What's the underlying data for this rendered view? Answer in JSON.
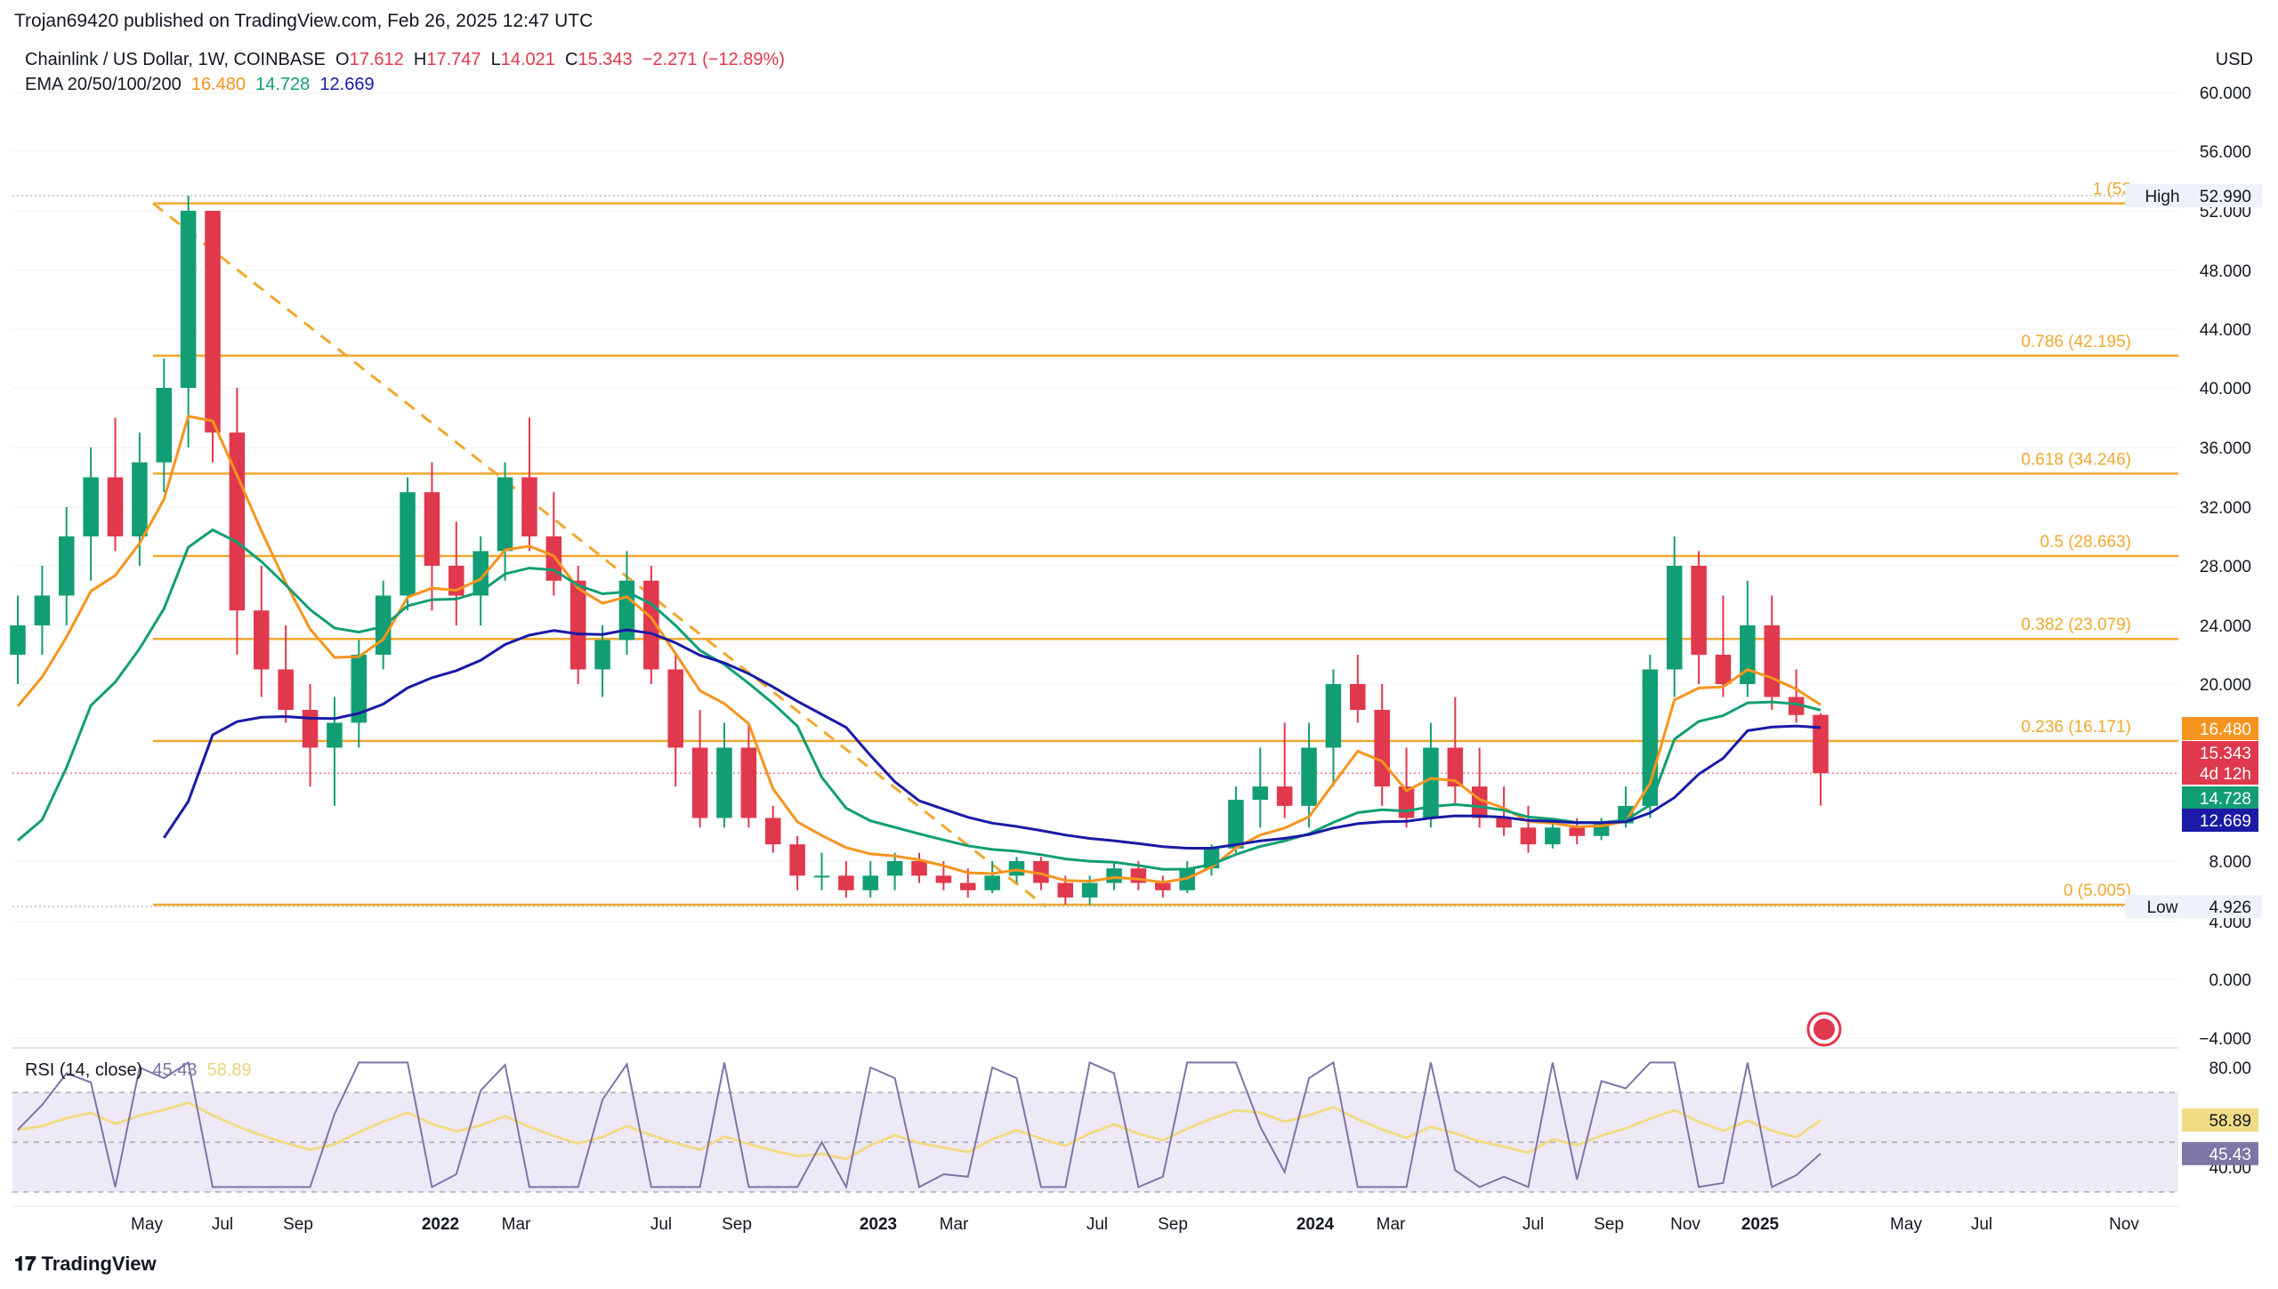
{
  "header": {
    "published": "Trojan69420 published on TradingView.com, Feb 26, 2025 12:47 UTC",
    "symbol": "Chainlink / US Dollar, 1W, COINBASE",
    "o_label": "O",
    "o_value": "17.612",
    "h_label": "H",
    "h_value": "17.747",
    "l_label": "L",
    "l_value": "14.021",
    "c_label": "C",
    "c_value": "15.343",
    "change": "−2.271 (−12.89%)",
    "ema_label": "EMA 20/50/100/200",
    "ema20": "16.480",
    "ema50": "14.728",
    "ema100": "12.669",
    "currency": "USD"
  },
  "rsi_header": {
    "label": "RSI (14, close)",
    "rsi": "45.43",
    "ma": "58.89"
  },
  "footer": {
    "logo_text": "TradingView"
  },
  "colors": {
    "up": "#129e74",
    "down": "#e0384d",
    "fib": "#f0a830",
    "ema20": "#f7941d",
    "ema50": "#129e74",
    "ema100": "#1a1aa6",
    "rsi": "#7e74a6",
    "rsi_ma": "#f1dc86",
    "rsi_band": "#ede9f7"
  },
  "chart_data": {
    "type": "candlestick",
    "price_axis": {
      "ticks": [
        "60.000",
        "56.000",
        "52.000",
        "48.000",
        "44.000",
        "40.000",
        "36.000",
        "32.000",
        "28.000",
        "24.000",
        "20.000",
        "8.000",
        "4.000",
        "0.000",
        "−4.000"
      ],
      "ylim": [
        -4,
        62
      ],
      "scale": "non-linear"
    },
    "time_axis": {
      "ticks": [
        "May",
        "Jul",
        "Sep",
        "2022",
        "Mar",
        "Jul",
        "Sep",
        "2023",
        "Mar",
        "Jul",
        "Sep",
        "2024",
        "Mar",
        "Jul",
        "Sep",
        "Nov",
        "2025",
        "May",
        "Jul",
        "Nov"
      ],
      "bold": [
        "2022",
        "2023",
        "2024",
        "2025"
      ]
    },
    "fib_levels": [
      {
        "label": "1 (52",
        "value": 52.49
      },
      {
        "label": "0.786 (42.195)",
        "value": 42.195
      },
      {
        "label": "0.618 (34.246)",
        "value": 34.246
      },
      {
        "label": "0.5 (28.663)",
        "value": 28.663
      },
      {
        "label": "0.382 (23.079)",
        "value": 23.079
      },
      {
        "label": "0.236 (16.171)",
        "value": 16.171
      },
      {
        "label": "0 (5.005)",
        "value": 5.005
      }
    ],
    "high": {
      "label": "High",
      "value": "52.990"
    },
    "low": {
      "label": "Low",
      "value": "4.926"
    },
    "price_tags": [
      {
        "value": "16.480",
        "color": "#f7941d"
      },
      {
        "value": "15.343",
        "color": "#e0384d"
      },
      {
        "value": "4d 12h",
        "color": "#e0384d"
      },
      {
        "value": "14.728",
        "color": "#129e74"
      },
      {
        "value": "12.669",
        "color": "#1a1aa6"
      }
    ],
    "ohlc_weekly_sample": [
      [
        22,
        26,
        20,
        24
      ],
      [
        24,
        28,
        22,
        26
      ],
      [
        26,
        32,
        24,
        30
      ],
      [
        30,
        36,
        27,
        34
      ],
      [
        34,
        38,
        29,
        30
      ],
      [
        30,
        37,
        28,
        35
      ],
      [
        35,
        42,
        33,
        40
      ],
      [
        40,
        52.99,
        36,
        52
      ],
      [
        52,
        52,
        35,
        37
      ],
      [
        37,
        40,
        22,
        25
      ],
      [
        25,
        28,
        19,
        21
      ],
      [
        21,
        24,
        17,
        18
      ],
      [
        18,
        20,
        15,
        16
      ],
      [
        16,
        19,
        14,
        17
      ],
      [
        17,
        23,
        16,
        22
      ],
      [
        22,
        27,
        21,
        26
      ],
      [
        26,
        34,
        25,
        33
      ],
      [
        33,
        35,
        25,
        28
      ],
      [
        28,
        31,
        24,
        26
      ],
      [
        26,
        30,
        24,
        29
      ],
      [
        29,
        35,
        27,
        34
      ],
      [
        34,
        38,
        29,
        30
      ],
      [
        30,
        33,
        26,
        27
      ],
      [
        27,
        28,
        20,
        21
      ],
      [
        21,
        24,
        19,
        23
      ],
      [
        23,
        29,
        22,
        27
      ],
      [
        27,
        28,
        20,
        21
      ],
      [
        21,
        22,
        15,
        16
      ],
      [
        16,
        18,
        12,
        13
      ],
      [
        13,
        17,
        12,
        16
      ],
      [
        16,
        17,
        12,
        13
      ],
      [
        13,
        14,
        9,
        10
      ],
      [
        10,
        11,
        6,
        7
      ],
      [
        7,
        9,
        6,
        7
      ],
      [
        7,
        8,
        5.5,
        6
      ],
      [
        6,
        8,
        5.5,
        7
      ],
      [
        7,
        9,
        6,
        8
      ],
      [
        8,
        9,
        6.5,
        7
      ],
      [
        7,
        8,
        6,
        6.5
      ],
      [
        6.5,
        7.5,
        5.5,
        6
      ],
      [
        6,
        8,
        5.8,
        7
      ],
      [
        7,
        8.5,
        6.5,
        8
      ],
      [
        8,
        8.5,
        6,
        6.5
      ],
      [
        6.5,
        7,
        5,
        5.5
      ],
      [
        5.5,
        7,
        5,
        6.5
      ],
      [
        6.5,
        8,
        6,
        7.5
      ],
      [
        7.5,
        8,
        6,
        6.5
      ],
      [
        6.5,
        7,
        5.5,
        6
      ],
      [
        6,
        8,
        5.8,
        7.5
      ],
      [
        7.5,
        10,
        7,
        9.5
      ],
      [
        9.5,
        15,
        9,
        14.5
      ],
      [
        14.5,
        16,
        12,
        15
      ],
      [
        15,
        17,
        13,
        14
      ],
      [
        14,
        17,
        12,
        16
      ],
      [
        16,
        21,
        15,
        20
      ],
      [
        20,
        22,
        17,
        18
      ],
      [
        18,
        20,
        14,
        15
      ],
      [
        15,
        16,
        12,
        13
      ],
      [
        13,
        17,
        12,
        16
      ],
      [
        16,
        19,
        14,
        15
      ],
      [
        15,
        16,
        12,
        13
      ],
      [
        13,
        15,
        11,
        12
      ],
      [
        12,
        14,
        9,
        10
      ],
      [
        10,
        13,
        9.5,
        12
      ],
      [
        12,
        13,
        10,
        11
      ],
      [
        11,
        13,
        10.5,
        12.5
      ],
      [
        12.5,
        15,
        12,
        14
      ],
      [
        14,
        22,
        13,
        21
      ],
      [
        21,
        30,
        19,
        28
      ],
      [
        28,
        29,
        20,
        22
      ],
      [
        22,
        26,
        19,
        20
      ],
      [
        20,
        27,
        19,
        24
      ],
      [
        24,
        26,
        18,
        19
      ],
      [
        19,
        21,
        17,
        17.6
      ],
      [
        17.612,
        17.747,
        14.021,
        15.343
      ]
    ],
    "rsi": {
      "ylim": [
        30,
        85
      ],
      "ticks": [
        "80.00",
        "40.00"
      ],
      "band": [
        30,
        70
      ],
      "value": 45.43,
      "ma_value": 58.89
    }
  }
}
